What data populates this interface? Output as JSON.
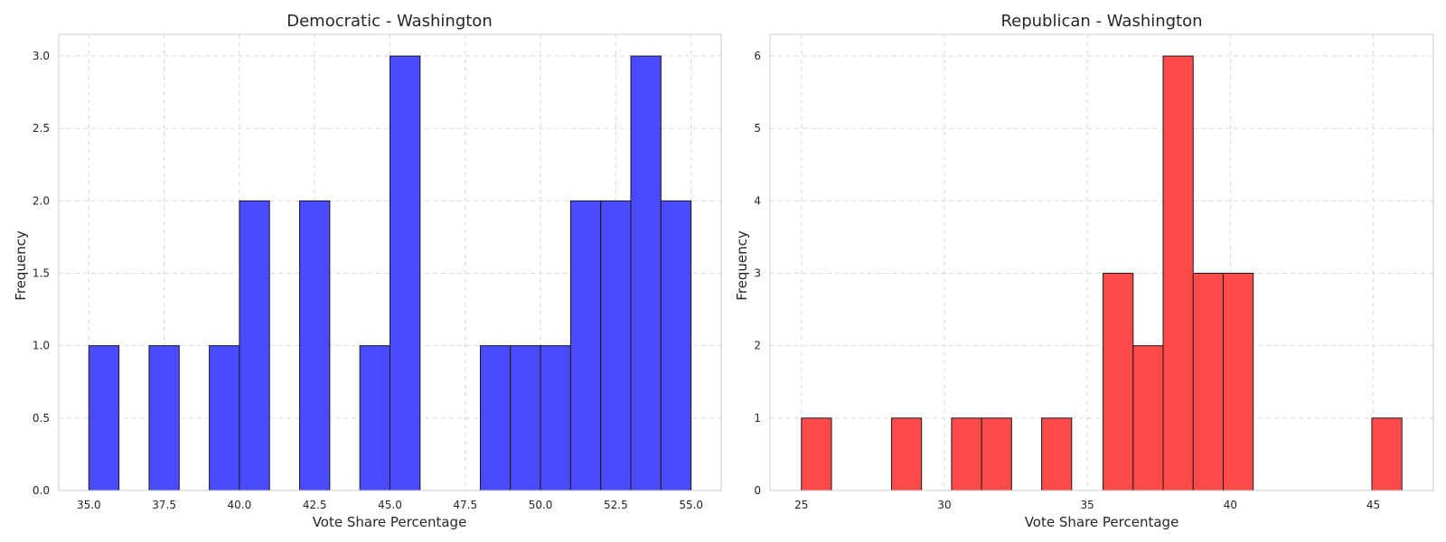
{
  "chart_data": [
    {
      "type": "bar",
      "title": "Democratic - Washington",
      "xlabel": "Vote Share Percentage",
      "ylabel": "Frequency",
      "xlim": [
        34,
        56
      ],
      "ylim": [
        0,
        3.15
      ],
      "xticks": [
        35.0,
        37.5,
        40.0,
        42.5,
        45.0,
        47.5,
        50.0,
        52.5,
        55.0
      ],
      "xtick_labels": [
        "35.0",
        "37.5",
        "40.0",
        "42.5",
        "45.0",
        "47.5",
        "50.0",
        "52.5",
        "55.0"
      ],
      "yticks": [
        0,
        0.5,
        1.0,
        1.5,
        2.0,
        2.5,
        3.0
      ],
      "ytick_labels": [
        "0.0",
        "0.5",
        "1.0",
        "1.5",
        "2.0",
        "2.5",
        "3.0"
      ],
      "grid": true,
      "color": "#4a4aff",
      "bins": [
        {
          "x0": 35,
          "x1": 36,
          "count": 1
        },
        {
          "x0": 37,
          "x1": 38,
          "count": 1
        },
        {
          "x0": 39,
          "x1": 40,
          "count": 1
        },
        {
          "x0": 40,
          "x1": 41,
          "count": 2
        },
        {
          "x0": 42,
          "x1": 43,
          "count": 2
        },
        {
          "x0": 44,
          "x1": 45,
          "count": 1
        },
        {
          "x0": 45,
          "x1": 46,
          "count": 3
        },
        {
          "x0": 48,
          "x1": 49,
          "count": 1
        },
        {
          "x0": 49,
          "x1": 50,
          "count": 1
        },
        {
          "x0": 50,
          "x1": 51,
          "count": 1
        },
        {
          "x0": 51,
          "x1": 52,
          "count": 2
        },
        {
          "x0": 52,
          "x1": 53,
          "count": 2
        },
        {
          "x0": 53,
          "x1": 54,
          "count": 3
        },
        {
          "x0": 54,
          "x1": 55,
          "count": 2
        }
      ]
    },
    {
      "type": "bar",
      "title": "Republican - Washington",
      "xlabel": "Vote Share Percentage",
      "ylabel": "Frequency",
      "xlim": [
        23.9,
        47.1
      ],
      "ylim": [
        0,
        6.3
      ],
      "xticks": [
        25,
        30,
        35,
        40,
        45
      ],
      "xtick_labels": [
        "25",
        "30",
        "35",
        "40",
        "45"
      ],
      "yticks": [
        0,
        1,
        2,
        3,
        4,
        5,
        6
      ],
      "ytick_labels": [
        "0",
        "1",
        "2",
        "3",
        "4",
        "5",
        "6"
      ],
      "grid": true,
      "color": "#ff4a4a",
      "bins": [
        {
          "x0": 25.0,
          "x1": 26.05,
          "count": 1
        },
        {
          "x0": 28.15,
          "x1": 29.2,
          "count": 1
        },
        {
          "x0": 30.25,
          "x1": 31.3,
          "count": 1
        },
        {
          "x0": 31.3,
          "x1": 32.35,
          "count": 1
        },
        {
          "x0": 33.4,
          "x1": 34.45,
          "count": 1
        },
        {
          "x0": 35.55,
          "x1": 36.6,
          "count": 3
        },
        {
          "x0": 36.6,
          "x1": 37.65,
          "count": 2
        },
        {
          "x0": 37.65,
          "x1": 38.7,
          "count": 6
        },
        {
          "x0": 38.7,
          "x1": 39.75,
          "count": 3
        },
        {
          "x0": 39.75,
          "x1": 40.8,
          "count": 3
        },
        {
          "x0": 44.95,
          "x1": 46.0,
          "count": 1
        }
      ]
    }
  ]
}
